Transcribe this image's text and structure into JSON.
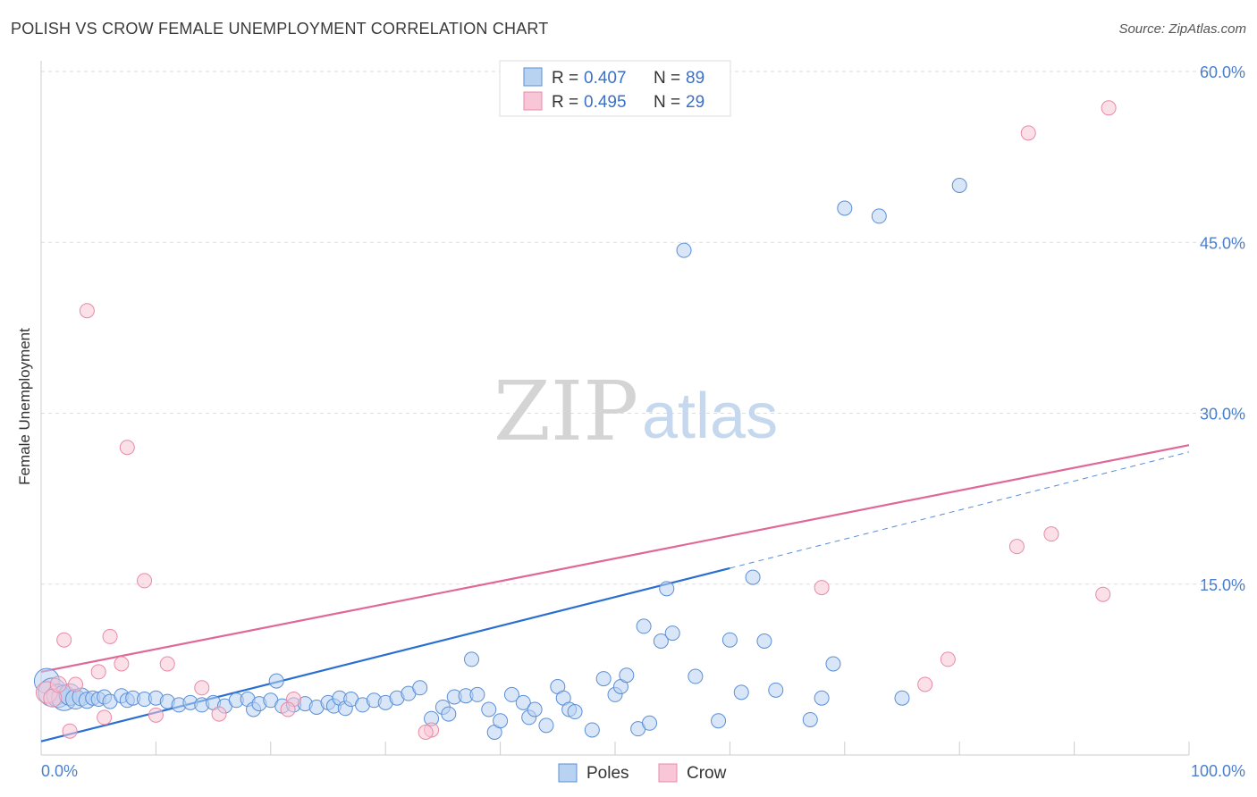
{
  "title": "POLISH VS CROW FEMALE UNEMPLOYMENT CORRELATION CHART",
  "source": "Source: ZipAtlas.com",
  "watermark": {
    "zip": "ZIP",
    "atlas": "atlas"
  },
  "colors": {
    "poles_fill": "#b8d2f2",
    "poles_stroke": "#5b8fd6",
    "poles_line": "#2a6fd0",
    "crow_fill": "#f8c6d6",
    "crow_stroke": "#e88aa8",
    "crow_line": "#e06896",
    "tick": "#4a7fd0",
    "grid": "#dddddd"
  },
  "legend": {
    "r_label": "R =",
    "n_label": "N =",
    "rows": [
      {
        "series": "Poles",
        "r": "0.407",
        "n": "89"
      },
      {
        "series": "Crow",
        "r": "0.495",
        "n": "29"
      }
    ]
  },
  "chart_data": {
    "type": "scatter",
    "title": "POLISH VS CROW FEMALE UNEMPLOYMENT CORRELATION CHART",
    "xlabel": "",
    "ylabel": "Female Unemployment",
    "xlim": [
      0,
      100
    ],
    "ylim": [
      0,
      60
    ],
    "x_tick_labels": [
      "0.0%",
      "100.0%"
    ],
    "y_ticks": [
      15,
      30,
      45,
      60
    ],
    "y_tick_labels": [
      "15.0%",
      "30.0%",
      "45.0%",
      "60.0%"
    ],
    "grid": true,
    "legend_position": "bottom",
    "series": [
      {
        "name": "Poles",
        "trend": {
          "x0": 0,
          "y0": 1.2,
          "x1": 60,
          "y1": 16.4,
          "dash_to": 100,
          "dash_y": 26.6
        },
        "points": [
          {
            "x": 0.5,
            "y": 6.5,
            "s": 14
          },
          {
            "x": 1,
            "y": 5.5,
            "s": 16
          },
          {
            "x": 1.5,
            "y": 5.2,
            "s": 13
          },
          {
            "x": 2,
            "y": 5.0,
            "s": 14
          },
          {
            "x": 2.5,
            "y": 5.3,
            "s": 12
          },
          {
            "x": 3,
            "y": 4.9,
            "s": 11
          },
          {
            "x": 3.5,
            "y": 5.1,
            "s": 10
          },
          {
            "x": 4,
            "y": 4.8,
            "s": 9
          },
          {
            "x": 4.5,
            "y": 5.0,
            "s": 8
          },
          {
            "x": 5,
            "y": 4.9,
            "s": 8
          },
          {
            "x": 5.5,
            "y": 5.1,
            "s": 8
          },
          {
            "x": 6,
            "y": 4.7,
            "s": 8
          },
          {
            "x": 7,
            "y": 5.2,
            "s": 8
          },
          {
            "x": 7.5,
            "y": 4.8,
            "s": 8
          },
          {
            "x": 8,
            "y": 5.0,
            "s": 8
          },
          {
            "x": 9,
            "y": 4.9,
            "s": 8
          },
          {
            "x": 10,
            "y": 5.0,
            "s": 8
          },
          {
            "x": 11,
            "y": 4.7,
            "s": 8
          },
          {
            "x": 12,
            "y": 4.4,
            "s": 8
          },
          {
            "x": 13,
            "y": 4.6,
            "s": 8
          },
          {
            "x": 14,
            "y": 4.4,
            "s": 8
          },
          {
            "x": 15,
            "y": 4.6,
            "s": 8
          },
          {
            "x": 16,
            "y": 4.3,
            "s": 8
          },
          {
            "x": 17,
            "y": 4.8,
            "s": 8
          },
          {
            "x": 18,
            "y": 4.9,
            "s": 8
          },
          {
            "x": 18.5,
            "y": 4.0,
            "s": 8
          },
          {
            "x": 19,
            "y": 4.5,
            "s": 8
          },
          {
            "x": 20,
            "y": 4.8,
            "s": 8
          },
          {
            "x": 21,
            "y": 4.3,
            "s": 8
          },
          {
            "x": 22,
            "y": 4.4,
            "s": 8
          },
          {
            "x": 23,
            "y": 4.5,
            "s": 8
          },
          {
            "x": 24,
            "y": 4.2,
            "s": 8
          },
          {
            "x": 25,
            "y": 4.6,
            "s": 8
          },
          {
            "x": 25.5,
            "y": 4.3,
            "s": 8
          },
          {
            "x": 26,
            "y": 5.0,
            "s": 8
          },
          {
            "x": 26.5,
            "y": 4.1,
            "s": 8
          },
          {
            "x": 27,
            "y": 4.9,
            "s": 8
          },
          {
            "x": 28,
            "y": 4.4,
            "s": 8
          },
          {
            "x": 29,
            "y": 4.8,
            "s": 8
          },
          {
            "x": 30,
            "y": 4.6,
            "s": 8
          },
          {
            "x": 31,
            "y": 5.0,
            "s": 8
          },
          {
            "x": 32,
            "y": 5.4,
            "s": 8
          },
          {
            "x": 33,
            "y": 5.9,
            "s": 8
          },
          {
            "x": 34,
            "y": 3.2,
            "s": 8
          },
          {
            "x": 35,
            "y": 4.2,
            "s": 8
          },
          {
            "x": 35.5,
            "y": 3.6,
            "s": 8
          },
          {
            "x": 36,
            "y": 5.1,
            "s": 8
          },
          {
            "x": 37,
            "y": 5.2,
            "s": 8
          },
          {
            "x": 38,
            "y": 5.3,
            "s": 8
          },
          {
            "x": 39,
            "y": 4.0,
            "s": 8
          },
          {
            "x": 39.5,
            "y": 2.0,
            "s": 8
          },
          {
            "x": 40,
            "y": 3.0,
            "s": 8
          },
          {
            "x": 41,
            "y": 5.3,
            "s": 8
          },
          {
            "x": 42,
            "y": 4.6,
            "s": 8
          },
          {
            "x": 42.5,
            "y": 3.3,
            "s": 8
          },
          {
            "x": 43,
            "y": 4.0,
            "s": 8
          },
          {
            "x": 44,
            "y": 2.6,
            "s": 8
          },
          {
            "x": 45,
            "y": 6.0,
            "s": 8
          },
          {
            "x": 45.5,
            "y": 5.0,
            "s": 8
          },
          {
            "x": 46,
            "y": 4.0,
            "s": 8
          },
          {
            "x": 46.5,
            "y": 3.8,
            "s": 8
          },
          {
            "x": 48,
            "y": 2.2,
            "s": 8
          },
          {
            "x": 49,
            "y": 6.7,
            "s": 8
          },
          {
            "x": 50,
            "y": 5.3,
            "s": 8
          },
          {
            "x": 50.5,
            "y": 6.0,
            "s": 8
          },
          {
            "x": 51,
            "y": 7.0,
            "s": 8
          },
          {
            "x": 52,
            "y": 2.3,
            "s": 8
          },
          {
            "x": 52.5,
            "y": 11.3,
            "s": 8
          },
          {
            "x": 53,
            "y": 2.8,
            "s": 8
          },
          {
            "x": 54,
            "y": 10.0,
            "s": 8
          },
          {
            "x": 55,
            "y": 10.7,
            "s": 8
          },
          {
            "x": 57,
            "y": 6.9,
            "s": 8
          },
          {
            "x": 59,
            "y": 3.0,
            "s": 8
          },
          {
            "x": 60,
            "y": 10.1,
            "s": 8
          },
          {
            "x": 61,
            "y": 5.5,
            "s": 8
          },
          {
            "x": 62,
            "y": 15.6,
            "s": 8
          },
          {
            "x": 64,
            "y": 5.7,
            "s": 8
          },
          {
            "x": 67,
            "y": 3.1,
            "s": 8
          },
          {
            "x": 68,
            "y": 5.0,
            "s": 8
          },
          {
            "x": 69,
            "y": 8.0,
            "s": 8
          },
          {
            "x": 75,
            "y": 5.0,
            "s": 8
          },
          {
            "x": 54.5,
            "y": 14.6,
            "s": 8
          },
          {
            "x": 56,
            "y": 44.3,
            "s": 8
          },
          {
            "x": 70,
            "y": 48.0,
            "s": 8
          },
          {
            "x": 73,
            "y": 47.3,
            "s": 8
          },
          {
            "x": 80,
            "y": 50.0,
            "s": 8
          },
          {
            "x": 63,
            "y": 10.0,
            "s": 8
          },
          {
            "x": 37.5,
            "y": 8.4,
            "s": 8
          },
          {
            "x": 20.5,
            "y": 6.5,
            "s": 8
          }
        ]
      },
      {
        "name": "Crow",
        "trend": {
          "x0": 0,
          "y0": 7.3,
          "x1": 100,
          "y1": 27.2
        },
        "points": [
          {
            "x": 0.5,
            "y": 5.5,
            "s": 12
          },
          {
            "x": 1,
            "y": 5.0,
            "s": 10
          },
          {
            "x": 1.5,
            "y": 6.2,
            "s": 9
          },
          {
            "x": 2,
            "y": 10.1,
            "s": 8
          },
          {
            "x": 2.5,
            "y": 2.1,
            "s": 8
          },
          {
            "x": 3,
            "y": 6.2,
            "s": 8
          },
          {
            "x": 4,
            "y": 39.0,
            "s": 8
          },
          {
            "x": 5,
            "y": 7.3,
            "s": 8
          },
          {
            "x": 5.5,
            "y": 3.3,
            "s": 8
          },
          {
            "x": 6,
            "y": 10.4,
            "s": 8
          },
          {
            "x": 7,
            "y": 8.0,
            "s": 8
          },
          {
            "x": 7.5,
            "y": 27.0,
            "s": 8
          },
          {
            "x": 9,
            "y": 15.3,
            "s": 8
          },
          {
            "x": 10,
            "y": 3.5,
            "s": 8
          },
          {
            "x": 11,
            "y": 8.0,
            "s": 8
          },
          {
            "x": 14,
            "y": 5.9,
            "s": 8
          },
          {
            "x": 15.5,
            "y": 3.6,
            "s": 8
          },
          {
            "x": 22,
            "y": 4.9,
            "s": 8
          },
          {
            "x": 21.5,
            "y": 4.0,
            "s": 8
          },
          {
            "x": 34,
            "y": 2.2,
            "s": 8
          },
          {
            "x": 68,
            "y": 14.7,
            "s": 8
          },
          {
            "x": 77,
            "y": 6.2,
            "s": 8
          },
          {
            "x": 79,
            "y": 8.4,
            "s": 8
          },
          {
            "x": 85,
            "y": 18.3,
            "s": 8
          },
          {
            "x": 88,
            "y": 19.4,
            "s": 8
          },
          {
            "x": 86,
            "y": 54.6,
            "s": 8
          },
          {
            "x": 93,
            "y": 56.8,
            "s": 8
          },
          {
            "x": 92.5,
            "y": 14.1,
            "s": 8
          },
          {
            "x": 33.5,
            "y": 2.0,
            "s": 8
          }
        ]
      }
    ]
  }
}
